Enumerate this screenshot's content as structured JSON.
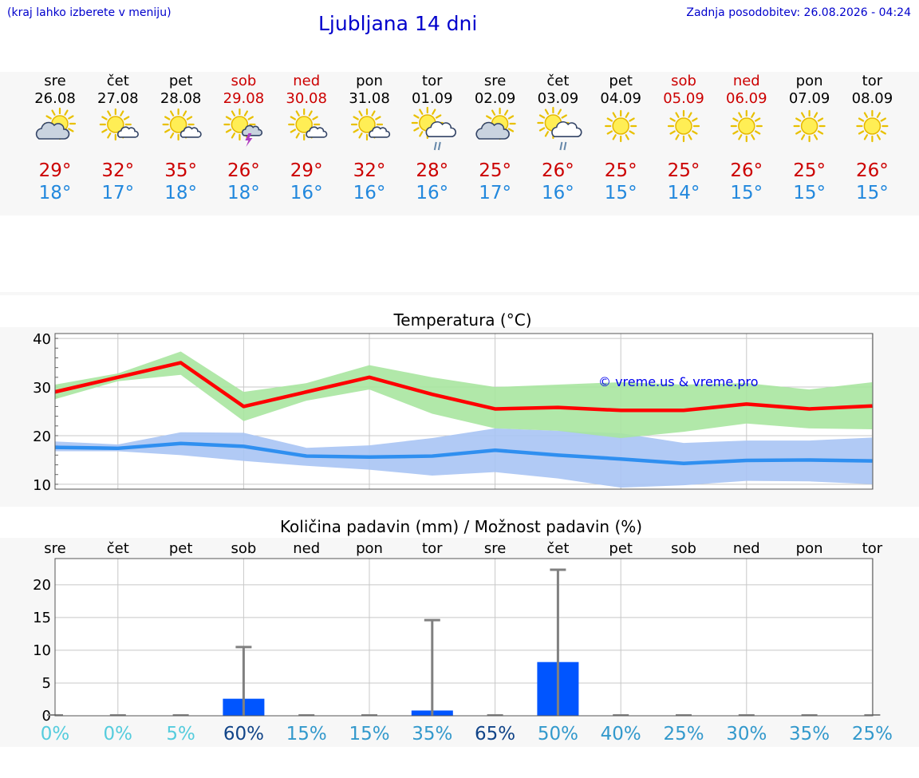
{
  "header": {
    "menu_hint": "(kraj lahko izberete v meniju)",
    "title": "Ljubljana 14 dni",
    "updated": "Zadnja posodobitev: 26.08.2026 - 04:24"
  },
  "colors": {
    "weekday": "#000000",
    "weekend": "#cc0000",
    "temp_max_text": "#cc0000",
    "temp_min_text": "#2288dd",
    "max_line": "#ff0000",
    "max_band": "#a8e6a0",
    "min_line": "#2f8ff0",
    "min_band": "#a9c4f4",
    "precip_bar": "#0055ff",
    "error_bar": "#808080"
  },
  "forecast": {
    "days": [
      {
        "dow": "sre",
        "date": "26.08",
        "weekend": false,
        "icon": "partly-cloudy-icon",
        "tmax": "29°",
        "tmin": "18°"
      },
      {
        "dow": "čet",
        "date": "27.08",
        "weekend": false,
        "icon": "sun-small-cloud-icon",
        "tmax": "32°",
        "tmin": "17°"
      },
      {
        "dow": "pet",
        "date": "28.08",
        "weekend": false,
        "icon": "sun-small-cloud-icon",
        "tmax": "35°",
        "tmin": "18°"
      },
      {
        "dow": "sob",
        "date": "29.08",
        "weekend": true,
        "icon": "sun-thunderstorm-icon",
        "tmax": "26°",
        "tmin": "18°"
      },
      {
        "dow": "ned",
        "date": "30.08",
        "weekend": true,
        "icon": "sun-small-cloud-icon",
        "tmax": "29°",
        "tmin": "16°"
      },
      {
        "dow": "pon",
        "date": "31.08",
        "weekend": false,
        "icon": "sun-small-cloud-icon",
        "tmax": "32°",
        "tmin": "16°"
      },
      {
        "dow": "tor",
        "date": "01.09",
        "weekend": false,
        "icon": "sun-cloud-rain-icon",
        "tmax": "28°",
        "tmin": "16°"
      },
      {
        "dow": "sre",
        "date": "02.09",
        "weekend": false,
        "icon": "partly-cloudy-icon",
        "tmax": "25°",
        "tmin": "17°"
      },
      {
        "dow": "čet",
        "date": "03.09",
        "weekend": false,
        "icon": "sun-cloud-rain-icon",
        "tmax": "26°",
        "tmin": "16°"
      },
      {
        "dow": "pet",
        "date": "04.09",
        "weekend": false,
        "icon": "sun-icon",
        "tmax": "25°",
        "tmin": "15°"
      },
      {
        "dow": "sob",
        "date": "05.09",
        "weekend": true,
        "icon": "sun-icon",
        "tmax": "25°",
        "tmin": "14°"
      },
      {
        "dow": "ned",
        "date": "06.09",
        "weekend": true,
        "icon": "sun-icon",
        "tmax": "26°",
        "tmin": "15°"
      },
      {
        "dow": "pon",
        "date": "07.09",
        "weekend": false,
        "icon": "sun-icon",
        "tmax": "25°",
        "tmin": "15°"
      },
      {
        "dow": "tor",
        "date": "08.09",
        "weekend": false,
        "icon": "sun-icon",
        "tmax": "26°",
        "tmin": "15°"
      }
    ]
  },
  "chart_data": [
    {
      "type": "line",
      "title": "Temperatura (°C)",
      "watermark": "© vreme.us & vreme.pro",
      "ylim": [
        9,
        41
      ],
      "yticks": [
        10,
        20,
        30,
        40
      ],
      "grid": true,
      "x": [
        "26.08",
        "27.08",
        "28.08",
        "29.08",
        "30.08",
        "31.08",
        "01.09",
        "02.09",
        "03.09",
        "04.09",
        "05.09",
        "06.09",
        "07.09",
        "08.09"
      ],
      "series": [
        {
          "values": [
            29,
            32,
            35,
            26,
            29,
            32,
            28.5,
            25.5,
            25.8,
            25.2,
            25.2,
            26.5,
            25.5,
            26.1
          ],
          "band_low": [
            27.5,
            31.2,
            32.5,
            23,
            27.2,
            29.5,
            24.5,
            21.5,
            21,
            19.5,
            20.8,
            22.5,
            21.5,
            21.3
          ],
          "band_high": [
            30.5,
            32.8,
            37.3,
            29,
            30.8,
            34.5,
            32,
            30,
            30.5,
            31,
            30.5,
            30.8,
            29.5,
            31
          ]
        },
        {
          "values": [
            17.6,
            17.4,
            18.4,
            17.8,
            15.8,
            15.6,
            15.8,
            17,
            16,
            15.2,
            14.3,
            14.9,
            15,
            14.8
          ],
          "band_low": [
            16.8,
            16.8,
            16,
            14.8,
            13.8,
            13,
            11.8,
            12.5,
            11.2,
            9.3,
            9.8,
            10.7,
            10.6,
            10
          ],
          "band_high": [
            18.8,
            18.2,
            20.7,
            20.6,
            17.5,
            18,
            19.5,
            21.5,
            21,
            20.5,
            18.5,
            19,
            19,
            19.6
          ]
        }
      ]
    },
    {
      "type": "bar",
      "title": "Količina padavin (mm) / Možnost padavin (%)",
      "ylim": [
        0,
        24
      ],
      "yticks": [
        0,
        5,
        10,
        15,
        20
      ],
      "grid": true,
      "categories": [
        "sre",
        "čet",
        "pet",
        "sob",
        "ned",
        "pon",
        "tor",
        "sre",
        "čet",
        "pet",
        "sob",
        "ned",
        "pon",
        "tor"
      ],
      "values": [
        0,
        0,
        0,
        2.6,
        0,
        0,
        0.8,
        0,
        8.2,
        0,
        0,
        0,
        0,
        0
      ],
      "error_high": [
        0,
        0,
        0,
        10.5,
        0,
        0,
        14.6,
        0,
        22.3,
        0,
        0,
        0,
        0,
        0
      ],
      "probability": [
        "0%",
        "0%",
        "5%",
        "60%",
        "15%",
        "15%",
        "35%",
        "65%",
        "50%",
        "40%",
        "25%",
        "30%",
        "35%",
        "25%"
      ],
      "probability_colors": [
        "#55ccdd",
        "#55ccdd",
        "#55ccdd",
        "#114488",
        "#3399cc",
        "#3399cc",
        "#3399cc",
        "#114488",
        "#3399cc",
        "#3399cc",
        "#3399cc",
        "#3399cc",
        "#3399cc",
        "#3399cc"
      ]
    }
  ]
}
